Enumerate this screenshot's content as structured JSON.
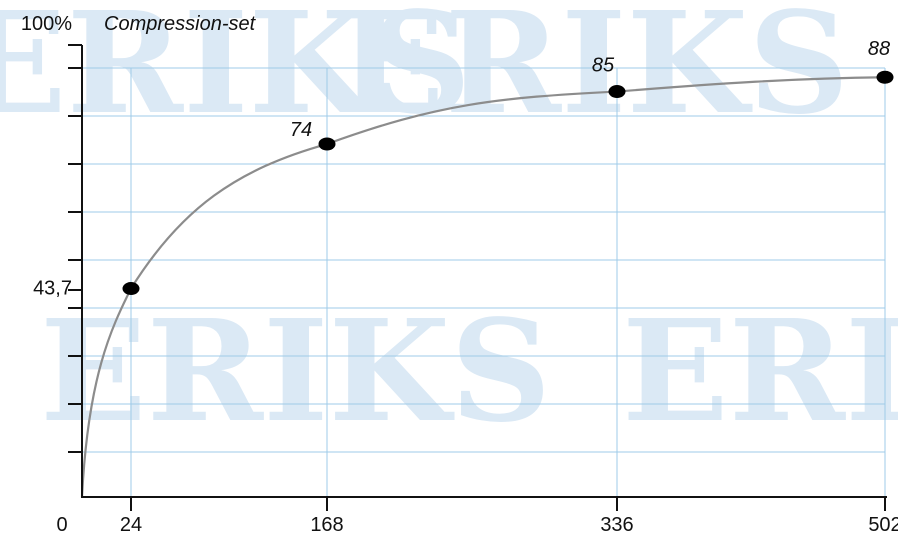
{
  "chart_data": {
    "type": "line",
    "title": "Compression-set",
    "x_ticks": [
      {
        "value": 0,
        "label": "0"
      },
      {
        "value": 24,
        "label": "24"
      },
      {
        "value": 168,
        "label": "168"
      },
      {
        "value": 336,
        "label": "336"
      },
      {
        "value": 502,
        "label": "502"
      }
    ],
    "y_ticks": [
      {
        "value": 100,
        "label": "100%"
      },
      {
        "value": 43.7,
        "label": "43,7"
      }
    ],
    "points": [
      {
        "x": 0,
        "y": 0
      },
      {
        "x": 24,
        "y": 43.7,
        "label": "43,7"
      },
      {
        "x": 168,
        "y": 74,
        "label": "74"
      },
      {
        "x": 336,
        "y": 85,
        "label": "85"
      },
      {
        "x": 502,
        "y": 88,
        "label": "88"
      }
    ],
    "xlim": [
      0,
      502
    ],
    "ylim": [
      0,
      100
    ],
    "grid": true
  },
  "watermark": {
    "text": "ERIKS",
    "color": "#dbe9f5"
  },
  "colors": {
    "grid": "#9fcbe8",
    "curve": "#8c8c8c",
    "axis": "#111111",
    "marker": "#000000"
  }
}
